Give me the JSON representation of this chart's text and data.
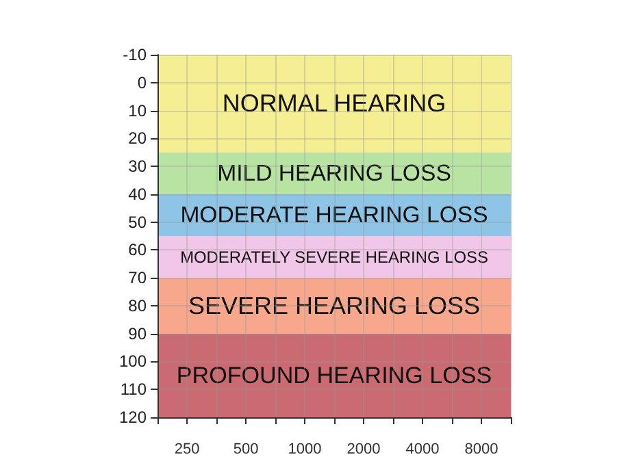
{
  "chart_data": {
    "type": "line",
    "categories": [
      "250",
      "500",
      "1000",
      "2000",
      "4000",
      "8000"
    ],
    "ylim": [
      120,
      -10
    ],
    "yticks": [
      -10,
      0,
      10,
      20,
      30,
      40,
      50,
      60,
      70,
      80,
      90,
      100,
      110,
      120
    ],
    "grid": true,
    "bands": [
      {
        "axis": "y",
        "from": -10,
        "to": 25,
        "label": "NORMAL HEARING",
        "color": "#f6ee92"
      },
      {
        "axis": "y",
        "from": 25,
        "to": 40,
        "label": "MILD HEARING LOSS",
        "color": "#b8e3a3"
      },
      {
        "axis": "y",
        "from": 40,
        "to": 55,
        "label": "MODERATE HEARING LOSS",
        "color": "#8ec5e6"
      },
      {
        "axis": "y",
        "from": 55,
        "to": 70,
        "label": "MODERATELY SEVERE HEARING LOSS",
        "color": "#f1c6e8"
      },
      {
        "axis": "y",
        "from": 70,
        "to": 90,
        "label": "SEVERE HEARING LOSS",
        "color": "#f7a88c"
      },
      {
        "axis": "y",
        "from": 90,
        "to": 120,
        "label": "PROFOUND HEARING LOSS",
        "color": "#c96b70"
      }
    ]
  }
}
